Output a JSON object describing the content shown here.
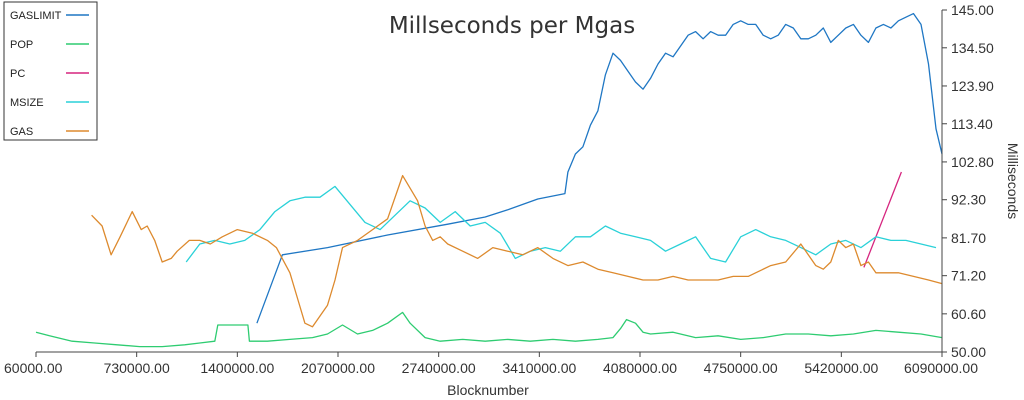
{
  "chart_data": {
    "type": "line",
    "title": "Millseconds per Mgas",
    "xlabel": "Blocknumber",
    "ylabel": "Milliseconds",
    "xlim": [
      60000,
      6090000
    ],
    "ylim": [
      50,
      145
    ],
    "x_ticks": [
      "60000.00",
      "730000.00",
      "1400000.00",
      "2070000.00",
      "2740000.00",
      "3410000.00",
      "4080000.00",
      "4750000.00",
      "5420000.00",
      "6090000.00"
    ],
    "y_ticks": [
      "50.00",
      "60.60",
      "71.20",
      "81.70",
      "92.30",
      "102.80",
      "113.40",
      "123.90",
      "134.50",
      "145.00"
    ],
    "legend_position": "top-left",
    "grid": false,
    "series": [
      {
        "name": "GASLIMIT",
        "color": "#1f77c4",
        "x": [
          1530000,
          1700000,
          2000000,
          2400000,
          2800000,
          3050000,
          3200000,
          3300000,
          3400000,
          3580000,
          3600000,
          3650000,
          3700000,
          3750000,
          3800000,
          3850000,
          3900000,
          3950000,
          4000000,
          4050000,
          4100000,
          4150000,
          4200000,
          4250000,
          4300000,
          4350000,
          4400000,
          4450000,
          4500000,
          4550000,
          4600000,
          4650000,
          4700000,
          4750000,
          4800000,
          4850000,
          4900000,
          4950000,
          5000000,
          5050000,
          5100000,
          5150000,
          5200000,
          5250000,
          5300000,
          5350000,
          5400000,
          5450000,
          5500000,
          5550000,
          5600000,
          5650000,
          5700000,
          5750000,
          5800000,
          5850000,
          5900000,
          5950000,
          6000000,
          6050000,
          6090000
        ],
        "values": [
          58,
          77,
          79,
          82.5,
          85.5,
          87.5,
          89.5,
          91,
          92.5,
          94,
          100,
          105,
          107,
          113,
          117,
          127,
          133,
          131,
          128,
          125,
          123,
          126,
          130,
          133,
          132,
          135,
          138,
          139,
          137,
          139,
          138,
          138,
          141,
          142,
          141,
          141,
          138,
          137,
          138,
          141,
          140,
          137,
          137,
          138,
          140,
          136,
          138,
          140,
          141,
          138,
          136,
          140,
          141,
          140,
          142,
          143,
          144,
          141,
          130,
          112,
          105
        ]
      },
      {
        "name": "POP",
        "color": "#2ecc71",
        "x": [
          60000,
          150000,
          300000,
          450000,
          600000,
          750000,
          900000,
          1050000,
          1150000,
          1250000,
          1270000,
          1400000,
          1470000,
          1480000,
          1600000,
          1750000,
          1900000,
          2000000,
          2100000,
          2200000,
          2300000,
          2400000,
          2500000,
          2550000,
          2650000,
          2750000,
          2900000,
          3050000,
          3200000,
          3350000,
          3500000,
          3650000,
          3800000,
          3900000,
          3950000,
          3990000,
          4050000,
          4100000,
          4150000,
          4300000,
          4450000,
          4600000,
          4750000,
          4900000,
          5050000,
          5200000,
          5350000,
          5500000,
          5650000,
          5800000,
          5950000,
          6090000
        ],
        "values": [
          55.5,
          54.5,
          53,
          52.5,
          52,
          51.5,
          51.5,
          52,
          52.5,
          53,
          57.5,
          57.5,
          57.5,
          53,
          53,
          53.5,
          54,
          55,
          57.5,
          55,
          56,
          58,
          61,
          58,
          54,
          53,
          53.5,
          53,
          53.5,
          53,
          53.5,
          53,
          53.5,
          54,
          56.5,
          59,
          58,
          55.5,
          55,
          55.5,
          54,
          54.5,
          53.5,
          54,
          55,
          55,
          54.5,
          55,
          56,
          55.5,
          55,
          54
        ]
      },
      {
        "name": "PC",
        "color": "#d6257f",
        "x": [
          5570000,
          5820000
        ],
        "values": [
          73.5,
          100
        ]
      },
      {
        "name": "MSIZE",
        "color": "#2ad1d8",
        "x": [
          1060000,
          1150000,
          1250000,
          1350000,
          1450000,
          1550000,
          1650000,
          1750000,
          1850000,
          1950000,
          2050000,
          2150000,
          2250000,
          2350000,
          2450000,
          2550000,
          2650000,
          2750000,
          2850000,
          2950000,
          3050000,
          3150000,
          3250000,
          3350000,
          3450000,
          3550000,
          3650000,
          3750000,
          3850000,
          3950000,
          4050000,
          4150000,
          4250000,
          4350000,
          4450000,
          4550000,
          4650000,
          4750000,
          4850000,
          4950000,
          5050000,
          5150000,
          5250000,
          5350000,
          5450000,
          5550000,
          5650000,
          5750000,
          5850000,
          5950000,
          6050000
        ],
        "values": [
          75,
          80,
          81,
          80,
          81,
          84,
          89,
          92,
          93,
          93,
          96,
          91,
          86,
          84,
          88,
          92,
          90,
          86,
          89,
          85,
          86,
          83,
          76,
          78,
          79,
          78,
          82,
          82,
          85,
          83,
          82,
          81,
          78,
          80,
          82,
          76,
          75,
          82,
          84,
          82,
          81,
          79,
          77,
          80,
          81,
          79,
          82,
          81,
          81,
          80,
          79
        ]
      },
      {
        "name": "GAS",
        "color": "#dd8a2e",
        "x": [
          430000,
          500000,
          560000,
          620000,
          700000,
          760000,
          800000,
          850000,
          900000,
          960000,
          1000000,
          1080000,
          1150000,
          1220000,
          1300000,
          1400000,
          1500000,
          1600000,
          1660000,
          1750000,
          1800000,
          1850000,
          1900000,
          1950000,
          2000000,
          2050000,
          2100000,
          2200000,
          2300000,
          2400000,
          2500000,
          2600000,
          2650000,
          2700000,
          2750000,
          2800000,
          2900000,
          3000000,
          3100000,
          3200000,
          3300000,
          3400000,
          3500000,
          3600000,
          3700000,
          3800000,
          3900000,
          4000000,
          4100000,
          4200000,
          4300000,
          4400000,
          4500000,
          4600000,
          4700000,
          4800000,
          4850000,
          4950000,
          5050000,
          5150000,
          5250000,
          5300000,
          5350000,
          5400000,
          5450000,
          5500000,
          5550000,
          5600000,
          5650000,
          5700000,
          5800000,
          5900000,
          6000000,
          6090000
        ],
        "values": [
          88,
          85,
          77,
          82,
          89,
          84,
          85,
          81,
          75,
          76,
          78,
          81,
          81,
          80,
          82,
          84,
          83,
          81,
          79,
          72,
          65,
          58,
          57,
          60,
          63,
          70,
          79,
          81,
          84,
          87,
          99,
          92,
          85,
          81,
          82,
          80,
          78,
          76,
          79,
          78,
          77,
          79,
          76,
          74,
          75,
          73,
          72,
          71,
          70,
          70,
          71,
          70,
          70,
          70,
          71,
          71,
          72,
          74,
          75,
          80,
          74,
          73,
          75,
          81,
          79,
          80,
          74,
          75,
          72,
          72,
          72,
          71,
          70,
          69
        ]
      }
    ]
  }
}
